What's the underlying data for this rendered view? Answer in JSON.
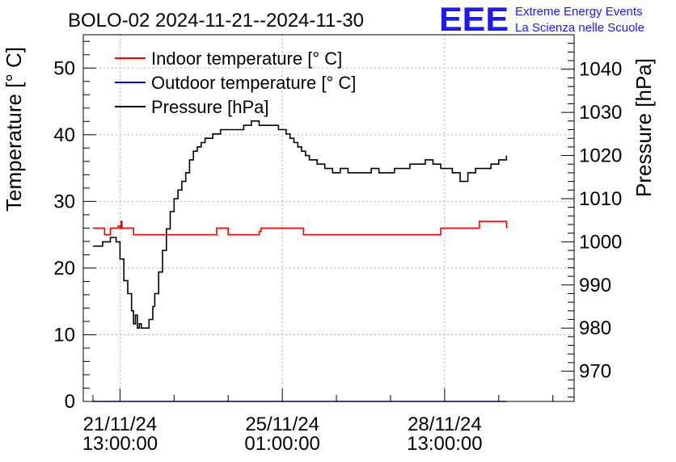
{
  "chart_data": {
    "type": "line",
    "title": "BOLO-02 2024-11-21--2024-11-30",
    "logo": {
      "mark": "EEE",
      "line1": "Extreme Energy Events",
      "line2": "La Scienza nelle Scuole",
      "color": "#1a1aff"
    },
    "ylabel_left": "Temperature [° C]",
    "ylabel_right": "Pressure [hPa]",
    "xlabel": "",
    "y_left_range": [
      0,
      55
    ],
    "y_right_range": [
      963,
      1048
    ],
    "x_range_hours": [
      -19,
      235
    ],
    "grid": true,
    "legend_position": "top-left",
    "y_left_ticks": [
      0,
      10,
      20,
      30,
      40,
      50
    ],
    "y_right_ticks": [
      970,
      980,
      990,
      1000,
      1010,
      1020,
      1030,
      1040
    ],
    "x_ticks": [
      {
        "hours": 0,
        "date": "21/11/24",
        "time": "13:00:00"
      },
      {
        "hours": 84,
        "date": "25/11/24",
        "time": "01:00:00"
      },
      {
        "hours": 168,
        "date": "28/11/24",
        "time": "13:00:00"
      }
    ],
    "x_minor_ticks_hours": [
      -14,
      28,
      56,
      112,
      140,
      196,
      224
    ],
    "series": [
      {
        "name": "Indoor temperature [° C]",
        "axis": "left",
        "color": "#ff0000",
        "x": [
          -14,
          -9,
          -8,
          -6,
          -5,
          -3,
          -2,
          -1,
          0,
          0.5,
          1,
          6,
          7,
          49,
          50,
          55,
          56,
          70,
          72,
          73,
          95,
          96,
          166,
          168,
          185,
          186,
          196,
          200
        ],
        "y": [
          26,
          26,
          25,
          25,
          26,
          26,
          26,
          26.3,
          26,
          27,
          26,
          26,
          25,
          25,
          26,
          26,
          25,
          25,
          25.5,
          26,
          25,
          25,
          26,
          26,
          26,
          27,
          27,
          26
        ]
      },
      {
        "name": "Outdoor temperature [° C]",
        "axis": "left",
        "color": "#0000ff",
        "x": [
          -14,
          200
        ],
        "y": [
          0,
          0
        ]
      },
      {
        "name": "Pressure [hPa]",
        "axis": "right",
        "color": "#000000",
        "x": [
          -14,
          -10,
          -9,
          -7,
          -5,
          -4,
          -2,
          0,
          2,
          4,
          6,
          7,
          8,
          9,
          10,
          11,
          12,
          14,
          15,
          17,
          18,
          20,
          22,
          24,
          26,
          28,
          30,
          32,
          34,
          36,
          38,
          40,
          42,
          44,
          46,
          48,
          50,
          52,
          55,
          58,
          60,
          62,
          64,
          66,
          68,
          70,
          72,
          74,
          76,
          78,
          80,
          82,
          84,
          86,
          88,
          90,
          92,
          94,
          96,
          98,
          100,
          102,
          104,
          106,
          108,
          110,
          112,
          114,
          118,
          122,
          126,
          128,
          130,
          134,
          138,
          142,
          146,
          150,
          154,
          158,
          162,
          166,
          168,
          172,
          176,
          178,
          180,
          184,
          188,
          192,
          196,
          200
        ],
        "y": [
          999,
          999,
          1000,
          1000,
          1001,
          1001,
          1000,
          996,
          991,
          988,
          984,
          981,
          983,
          980,
          981,
          980,
          980,
          980,
          982,
          985,
          988,
          993,
          998,
          1003,
          1007,
          1010,
          1012,
          1014,
          1016,
          1019,
          1021,
          1022,
          1023,
          1024,
          1024,
          1025,
          1025,
          1026,
          1026,
          1026,
          1026,
          1026,
          1027,
          1027,
          1028,
          1028,
          1027,
          1027,
          1027,
          1027,
          1027,
          1026,
          1026,
          1025,
          1024,
          1023,
          1022,
          1021,
          1020,
          1019,
          1019,
          1018,
          1018,
          1017,
          1017,
          1016,
          1016,
          1017,
          1016,
          1016,
          1016,
          1016,
          1017,
          1016,
          1016,
          1017,
          1017,
          1018,
          1018,
          1019,
          1018,
          1017,
          1017,
          1016,
          1014,
          1014,
          1016,
          1017,
          1017,
          1018,
          1019,
          1020
        ]
      }
    ]
  }
}
